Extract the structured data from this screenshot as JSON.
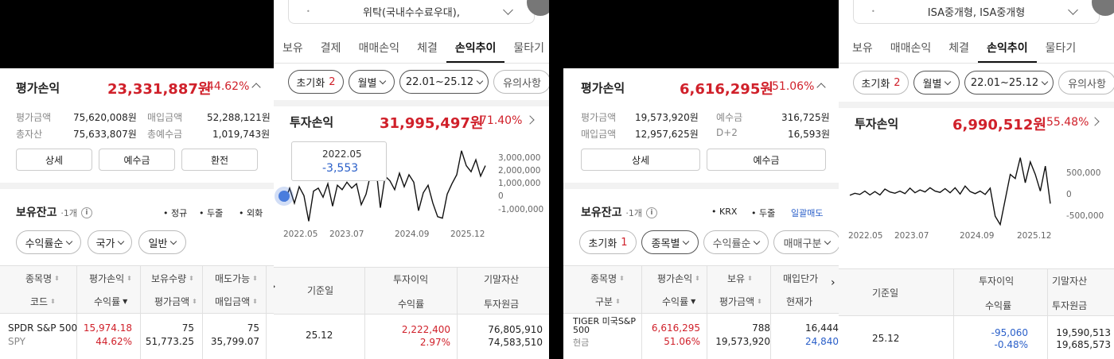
{
  "p1": {
    "eval_pl": {
      "label": "평가손익",
      "amount": "23,331,887원",
      "pct": "44.62%"
    },
    "stats": [
      {
        "label": "평가금액",
        "value": "75,620,008원"
      },
      {
        "label": "매입금액",
        "value": "52,288,121원"
      },
      {
        "label": "총자산",
        "value": "75,633,807원"
      },
      {
        "label": "총예수금",
        "value": "1,019,743원"
      }
    ],
    "buttons": [
      "상세",
      "예수금",
      "환전"
    ],
    "holdings": {
      "title": "보유잔고",
      "count": "1개"
    },
    "toggles": [
      "정규",
      "두줄",
      "외화"
    ],
    "filters": [
      "수익률순",
      "국가",
      "일반"
    ],
    "headers": {
      "r1": [
        "종목명",
        "평가손익",
        "보유수량",
        "매도가능"
      ],
      "r2": [
        "코드",
        "수익률",
        "평가금액",
        "매입금액"
      ]
    },
    "row": {
      "name": "SPDR S&P 500",
      "code": "SPY",
      "pl": "15,974.18",
      "rate": "44.62%",
      "qty": "75",
      "eval": "51,773.25",
      "sellable": "75",
      "buy": "35,799.07"
    }
  },
  "p2": {
    "account": "위탁(국내수수료우대),",
    "tabs": [
      "보유",
      "결제",
      "매매손익",
      "체결",
      "손익추이",
      "물타기"
    ],
    "active_tab": "손익추이",
    "filters": {
      "reset": "초기화",
      "reset_count": "2",
      "period": "월별",
      "range": "22.01~25.12",
      "notice": "유의사항"
    },
    "invest": {
      "label": "투자손익",
      "amount": "31,995,497원",
      "pct": "71.40%"
    },
    "tooltip": {
      "date": "2022.05",
      "value": "-3,553"
    },
    "table": {
      "date_h": "기준일",
      "profit_h": "투자이익",
      "rate_h": "수익률",
      "end_h": "기말자산",
      "principal_h": "투자원금",
      "date": "25.12",
      "profit": "2,222,400",
      "rate": "2.97%",
      "end": "76,805,910",
      "principal": "74,583,510"
    }
  },
  "p3": {
    "eval_pl": {
      "label": "평가손익",
      "amount": "6,616,295원",
      "pct": "51.06%"
    },
    "stats": [
      {
        "label": "평가금액",
        "value": "19,573,920원"
      },
      {
        "label": "예수금",
        "value": "316,725원"
      },
      {
        "label": "매입금액",
        "value": "12,957,625원"
      },
      {
        "label": "D+2",
        "value": "16,593원"
      }
    ],
    "buttons": [
      "상세",
      "예수금"
    ],
    "holdings": {
      "title": "보유잔고",
      "count": "1개"
    },
    "toggles": [
      "KRX",
      "두줄"
    ],
    "bulk_sell": "일괄매도",
    "filters": {
      "reset": "초기화",
      "reset_count": "1",
      "f1": "종목별",
      "f2": "수익률순",
      "f3": "매매구분"
    },
    "headers": {
      "r1": [
        "종목명",
        "평가손익",
        "보유",
        "매입단가"
      ],
      "r2": [
        "구분",
        "수익률",
        "평가금액",
        "현재가"
      ]
    },
    "row": {
      "name_l1": "TIGER 미국S&P",
      "name_l2": "500",
      "type": "현금",
      "pl": "6,616,295",
      "rate": "51.06%",
      "qty": "788",
      "eval": "19,573,920",
      "avg": "16,444",
      "cur": "24,840"
    }
  },
  "p4": {
    "account": "ISA중개형, ISA중개형",
    "tabs": [
      "보유",
      "매매손익",
      "체결",
      "손익추이",
      "물타기"
    ],
    "active_tab": "손익추이",
    "filters": {
      "reset": "초기화",
      "reset_count": "2",
      "period": "월별",
      "range": "22.01~25.12",
      "notice": "유의사항"
    },
    "invest": {
      "label": "투자손익",
      "amount": "6,990,512원",
      "pct": "55.48%"
    },
    "table": {
      "date_h": "기준일",
      "profit_h": "투자이익",
      "rate_h": "수익률",
      "end_h": "기말자산",
      "principal_h": "투자원금",
      "date": "25.12",
      "profit": "-95,060",
      "rate": "-0.48%",
      "end": "19,590,513",
      "principal": "19,685,573"
    }
  },
  "chart_data": [
    {
      "type": "line",
      "x_ticks": [
        "2022.05",
        "2023.07",
        "2024.09",
        "2025.12"
      ],
      "y_ticks": [
        "3,000,000",
        "2,000,000",
        "1,000,000",
        "0",
        "-1,000,000"
      ],
      "ylim": [
        -1900000,
        3400000
      ],
      "values": [
        -200000,
        700000,
        -300000,
        800000,
        200000,
        -1500000,
        500000,
        700000,
        100000,
        1000000,
        -500000,
        900000,
        600000,
        1100000,
        700000,
        1000000,
        -400000,
        300000,
        1700000,
        2300000,
        -600000,
        1500000,
        1200000,
        600000,
        1700000,
        800000,
        1600000,
        1100000,
        -800000,
        400000,
        900000,
        -300000,
        -1200000,
        -1300000,
        300000,
        1000000,
        1600000,
        3200000,
        2200000,
        1800000,
        2600000,
        1500000,
        2200000
      ]
    },
    {
      "type": "line",
      "x_ticks": [
        "2022.05",
        "2023.07",
        "2024.09",
        "2025.12"
      ],
      "y_ticks": [
        "500,000",
        "0",
        "-500,000"
      ],
      "ylim": [
        -800000,
        1100000
      ],
      "values": [
        0,
        50000,
        20000,
        100000,
        10000,
        90000,
        10000,
        150000,
        80000,
        50000,
        100000,
        40000,
        170000,
        60000,
        130000,
        80000,
        180000,
        100000,
        70000,
        160000,
        60000,
        180000,
        30000,
        220000,
        90000,
        40000,
        100000,
        20000,
        170000,
        -500000,
        -700000,
        -100000,
        500000,
        400000,
        900000,
        300000,
        800000,
        500000,
        100000,
        700000,
        -200000
      ]
    }
  ]
}
